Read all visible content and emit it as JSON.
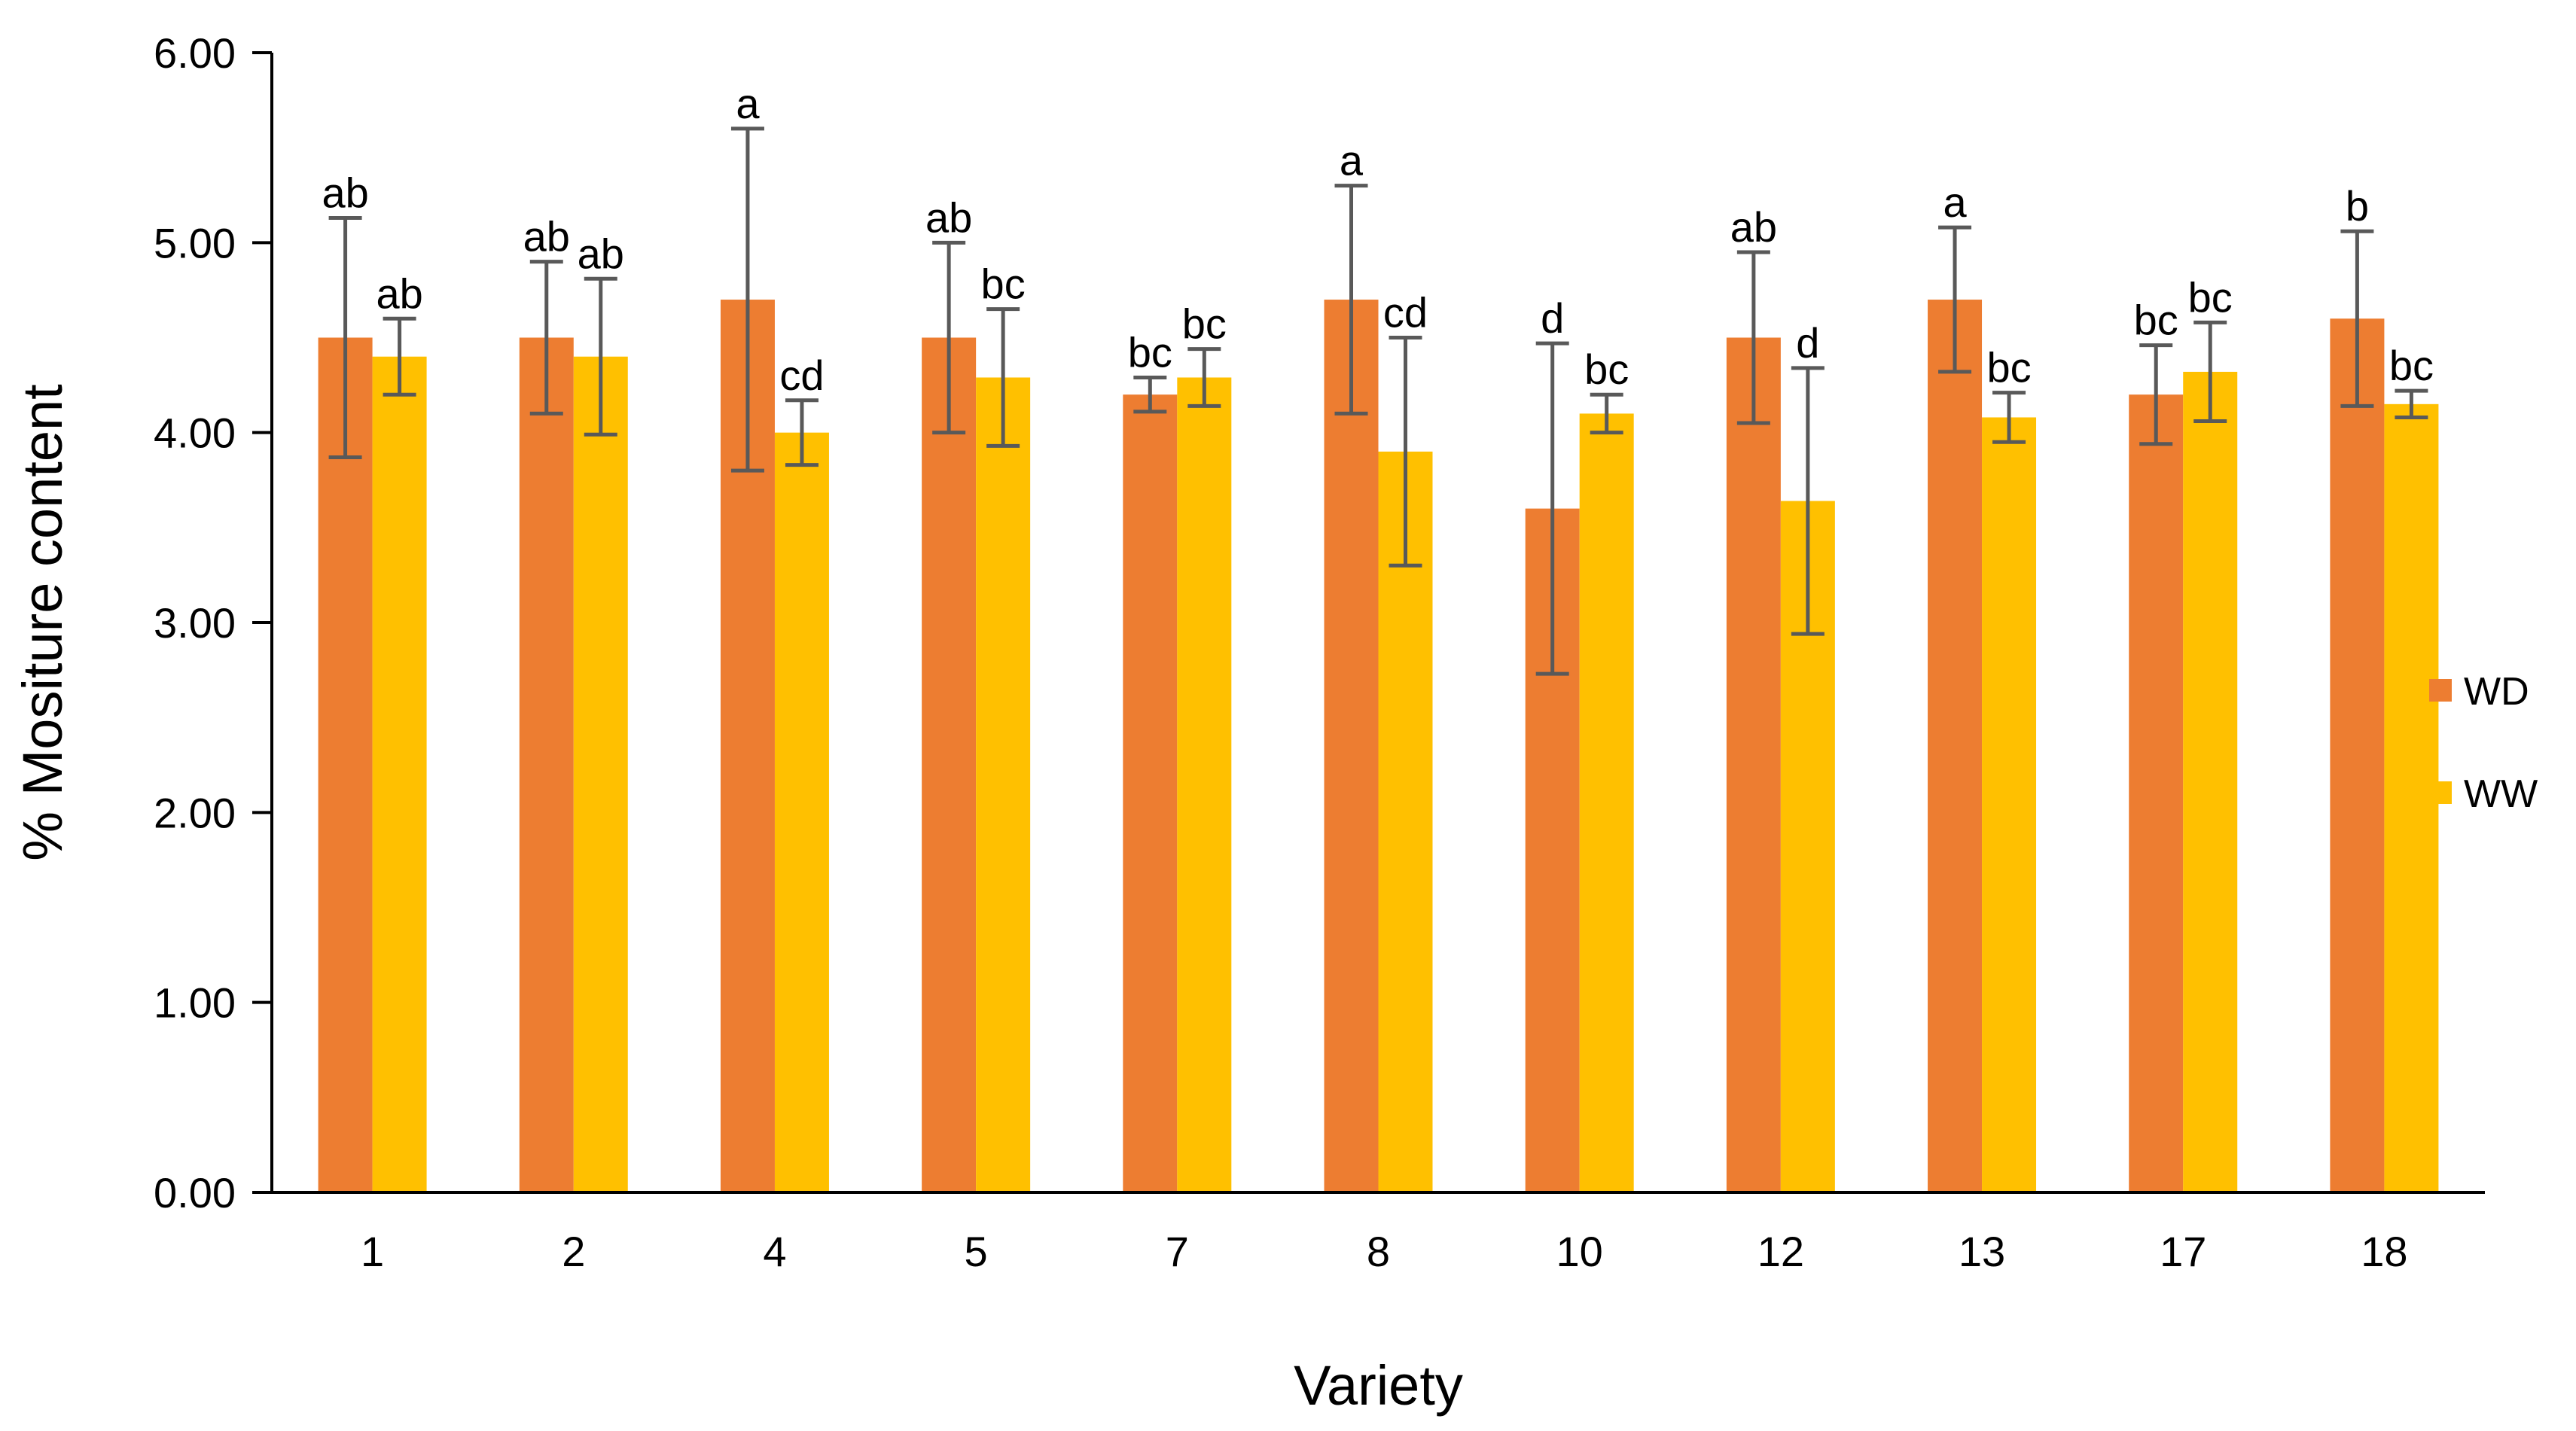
{
  "chart_data": {
    "type": "bar",
    "xlabel": "Variety",
    "ylabel": "% Mositure content",
    "ylim": [
      0,
      6
    ],
    "yticks": [
      "0.00",
      "1.00",
      "2.00",
      "3.00",
      "4.00",
      "5.00",
      "6.00"
    ],
    "grid": false,
    "legend_position": "right",
    "categories": [
      "1",
      "2",
      "4",
      "5",
      "7",
      "8",
      "10",
      "12",
      "13",
      "17",
      "18"
    ],
    "series": [
      {
        "name": "WD",
        "color": "#ED7D31",
        "values": [
          4.5,
          4.5,
          4.7,
          4.5,
          4.2,
          4.7,
          3.6,
          4.5,
          4.7,
          4.2,
          4.6
        ],
        "error": [
          0.63,
          0.4,
          0.9,
          0.5,
          0.09,
          0.6,
          0.87,
          0.45,
          0.38,
          0.26,
          0.46
        ],
        "letters": [
          "ab",
          "ab",
          "a",
          "ab",
          "bc",
          "a",
          "d",
          "ab",
          "a",
          "bc",
          "b"
        ]
      },
      {
        "name": "WW",
        "color": "#FFC000",
        "values": [
          4.4,
          4.4,
          4.0,
          4.29,
          4.29,
          3.9,
          4.1,
          3.64,
          4.08,
          4.32,
          4.15
        ],
        "error": [
          0.2,
          0.41,
          0.17,
          0.36,
          0.15,
          0.6,
          0.1,
          0.7,
          0.13,
          0.26,
          0.07
        ],
        "letters": [
          "ab",
          "ab",
          "cd",
          "bc",
          "bc",
          "cd",
          "bc",
          "d",
          "bc",
          "bc",
          "bc"
        ]
      }
    ]
  }
}
